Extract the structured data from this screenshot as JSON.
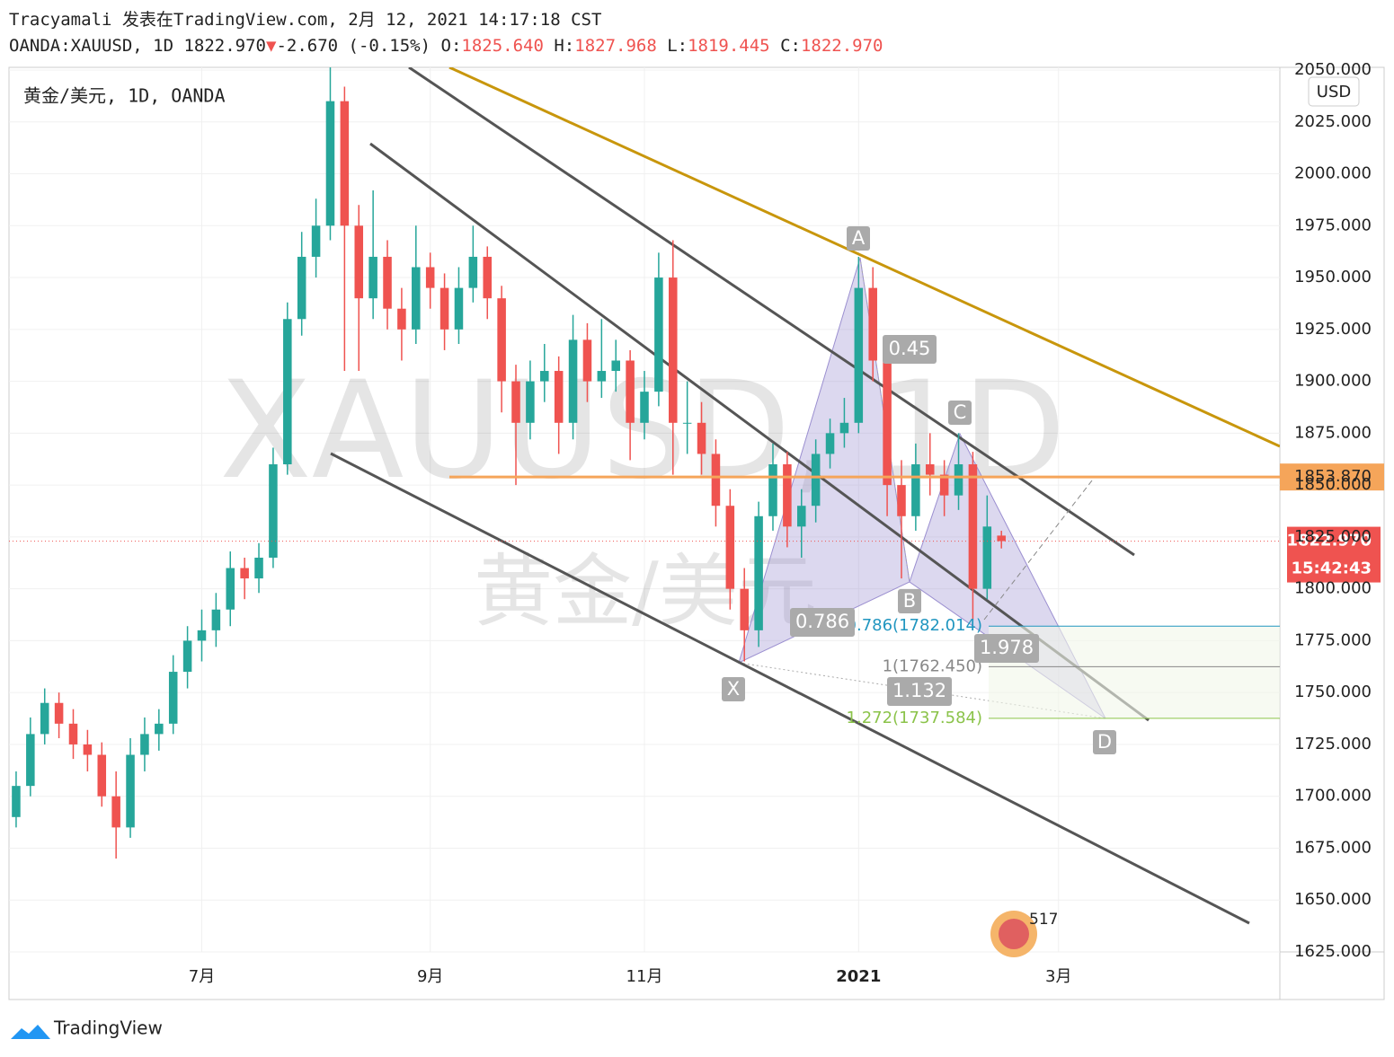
{
  "header": {
    "line1": "Tracyamali 发表在TradingView.com, 2月 12, 2021 14:17:18 CST",
    "symbol": "OANDA:XAUUSD, 1D",
    "price": "1822.970",
    "arrow": "▼",
    "change": "-2.670 (-0.15%)",
    "o_label": "O:",
    "o": "1825.640",
    "h_label": "H:",
    "h": "1827.968",
    "l_label": "L:",
    "l": "1819.445",
    "c_label": "C:",
    "c": "1822.970"
  },
  "chart_data": {
    "type": "candlestick",
    "title": "黄金/美元, 1D, OANDA",
    "watermark_symbol": "XAUUSD, 1D",
    "watermark_name": "黄金/美元",
    "currency": "USD",
    "up_color": "#26a69a",
    "down_color": "#ef5350",
    "categories": [
      null,
      null,
      null,
      null,
      null,
      null,
      null,
      null,
      null,
      null,
      null,
      null,
      null,
      "7月",
      null,
      null,
      null,
      null,
      null,
      null,
      null,
      null,
      null,
      null,
      null,
      null,
      null,
      null,
      null,
      "9月",
      null,
      null,
      null,
      null,
      null,
      null,
      null,
      null,
      null,
      null,
      null,
      null,
      null,
      null,
      "11月",
      null,
      null,
      null,
      null,
      null,
      null,
      null,
      null,
      null,
      null,
      null,
      null,
      null,
      null,
      "2021",
      null,
      null,
      null,
      null,
      null,
      null,
      null,
      null,
      null,
      null,
      null,
      null,
      null,
      "3月",
      null,
      null,
      null,
      null,
      null,
      null,
      null,
      null,
      null,
      null,
      null,
      null,
      null,
      null,
      null
    ],
    "open": [
      1690,
      1705,
      1730,
      1745,
      1735,
      1725,
      1720,
      1700,
      1685,
      1720,
      1730,
      1735,
      1760,
      1775,
      1780,
      1790,
      1810,
      1805,
      1815,
      1860,
      1930,
      1960,
      1975,
      2035,
      1975,
      1940,
      1960,
      1935,
      1925,
      1955,
      1945,
      1925,
      1945,
      1960,
      1940,
      1900,
      1880,
      1900,
      1905,
      1880,
      1920,
      1900,
      1905,
      1910,
      1880,
      1895,
      1950,
      1880,
      1880,
      1865,
      1840,
      1800,
      1780,
      1835,
      1860,
      1830,
      1840,
      1865,
      1875,
      1880,
      1945,
      1910,
      1850,
      1835,
      1860,
      1855,
      1845,
      1860,
      1800,
      1825.64,
      null,
      null,
      null,
      null,
      null,
      null,
      null,
      null,
      null,
      null,
      null,
      null,
      null,
      null,
      null,
      null,
      null,
      null,
      null
    ],
    "high": [
      1712,
      1738,
      1752,
      1750,
      1742,
      1732,
      1726,
      1712,
      1728,
      1738,
      1742,
      1768,
      1782,
      1790,
      1798,
      1818,
      1815,
      1822,
      1868,
      1938,
      1972,
      1988,
      2065,
      2042,
      1985,
      1992,
      1968,
      1945,
      1975,
      1962,
      1952,
      1955,
      1975,
      1965,
      1946,
      1908,
      1910,
      1918,
      1912,
      1932,
      1928,
      1930,
      1920,
      1915,
      1905,
      1962,
      1968,
      1900,
      1890,
      1872,
      1848,
      1810,
      1842,
      1870,
      1866,
      1848,
      1872,
      1882,
      1892,
      1960,
      1955,
      1918,
      1862,
      1870,
      1875,
      1862,
      1875,
      1866,
      1845,
      1827.968,
      null,
      null,
      null,
      null,
      null,
      null,
      null,
      null,
      null,
      null,
      null,
      null,
      null,
      null,
      null,
      null,
      null,
      null,
      null
    ],
    "low": [
      1685,
      1700,
      1725,
      1728,
      1718,
      1712,
      1695,
      1670,
      1680,
      1712,
      1722,
      1730,
      1752,
      1765,
      1772,
      1782,
      1795,
      1798,
      1810,
      1855,
      1922,
      1950,
      1968,
      1905,
      1905,
      1930,
      1925,
      1910,
      1918,
      1935,
      1915,
      1918,
      1938,
      1930,
      1885,
      1850,
      1872,
      1890,
      1865,
      1872,
      1890,
      1892,
      1895,
      1862,
      1872,
      1888,
      1855,
      1865,
      1855,
      1830,
      1790,
      1765,
      1772,
      1828,
      1820,
      1815,
      1832,
      1858,
      1868,
      1875,
      1900,
      1835,
      1805,
      1828,
      1845,
      1835,
      1838,
      1785,
      1795,
      1819.445,
      null,
      null,
      null,
      null,
      null,
      null,
      null,
      null,
      null,
      null,
      null,
      null,
      null,
      null,
      null,
      null,
      null,
      null,
      null
    ],
    "close": [
      1705,
      1730,
      1745,
      1735,
      1725,
      1720,
      1700,
      1685,
      1720,
      1730,
      1735,
      1760,
      1775,
      1780,
      1790,
      1810,
      1805,
      1815,
      1860,
      1930,
      1960,
      1975,
      2035,
      1975,
      1940,
      1960,
      1935,
      1925,
      1955,
      1945,
      1925,
      1945,
      1960,
      1940,
      1900,
      1880,
      1900,
      1905,
      1880,
      1920,
      1900,
      1905,
      1910,
      1880,
      1895,
      1950,
      1880,
      1880,
      1865,
      1840,
      1800,
      1780,
      1835,
      1860,
      1830,
      1840,
      1865,
      1875,
      1880,
      1945,
      1910,
      1850,
      1835,
      1860,
      1855,
      1845,
      1860,
      1800,
      1830,
      1822.97,
      null,
      null,
      null,
      null,
      null,
      null,
      null,
      null,
      null,
      null,
      null,
      null,
      null,
      null,
      null,
      null,
      null,
      null,
      null
    ],
    "ylim": [
      1625,
      2050
    ],
    "yticks": [
      {
        "value": 1625,
        "label": "1625.000"
      },
      {
        "value": 1650,
        "label": "1650.000"
      },
      {
        "value": 1675,
        "label": "1675.000"
      },
      {
        "value": 1700,
        "label": "1700.000"
      },
      {
        "value": 1725,
        "label": "1725.000"
      },
      {
        "value": 1750,
        "label": "1750.000"
      },
      {
        "value": 1775,
        "label": "1775.000"
      },
      {
        "value": 1800,
        "label": "1800.000"
      },
      {
        "value": 1825,
        "label": "1825.000"
      },
      {
        "value": 1850,
        "label": "1850.000"
      },
      {
        "value": 1875,
        "label": "1875.000"
      },
      {
        "value": 1900,
        "label": "1900.000"
      },
      {
        "value": 1925,
        "label": "1925.000"
      },
      {
        "value": 1950,
        "label": "1950.000"
      },
      {
        "value": 1975,
        "label": "1975.000"
      },
      {
        "value": 2000,
        "label": "2000.000"
      },
      {
        "value": 2025,
        "label": "2025.000"
      },
      {
        "value": 2050,
        "label": "2050.000"
      }
    ],
    "grid": true,
    "last_price": {
      "value": 1822.97,
      "label": "1822.970",
      "color": "#ef5350"
    },
    "countdown": "15:42:43",
    "price_line": {
      "value": 1853.87,
      "label": "1853.870",
      "color": "#f5a55a"
    },
    "pattern_points": [
      "X",
      "A",
      "B",
      "C",
      "D"
    ],
    "pattern_ratios": [
      0.45,
      0.786,
      1.978,
      1.132
    ],
    "fib_levels": [
      {
        "value": 1782.014,
        "label": "0.786(1782.014)",
        "color": "#2196c0"
      },
      {
        "value": 1762.45,
        "label": "1(1762.450)",
        "color": "#888888"
      },
      {
        "value": 1737.584,
        "label": "1.272(1737.584)",
        "color": "#8bc34a"
      }
    ],
    "event_count": "517"
  },
  "footer": {
    "brand": "TradingView"
  }
}
